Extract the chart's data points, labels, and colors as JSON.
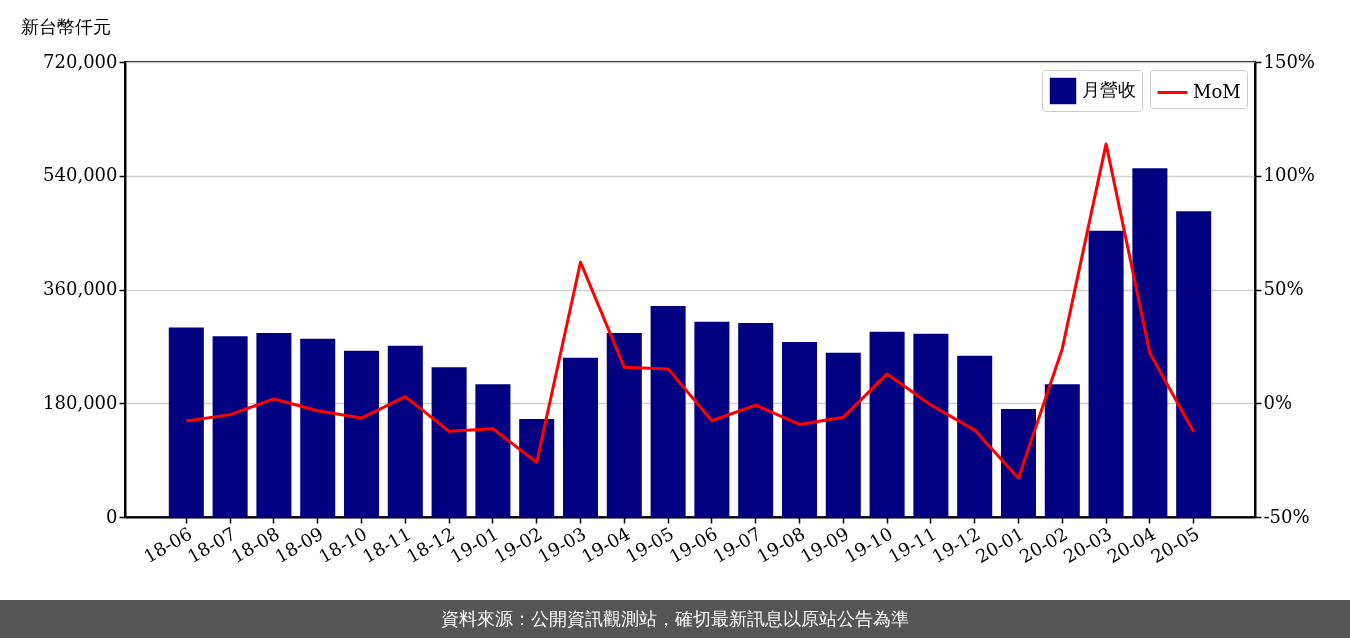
{
  "chart_data": {
    "type": "bar",
    "ylabel": "新台幣仟元",
    "categories": [
      "18-06",
      "18-07",
      "18-08",
      "18-09",
      "18-10",
      "18-11",
      "18-12",
      "19-01",
      "19-02",
      "19-03",
      "19-04",
      "19-05",
      "19-06",
      "19-07",
      "19-08",
      "19-09",
      "19-10",
      "19-11",
      "19-12",
      "20-01",
      "20-02",
      "20-03",
      "20-04",
      "20-05"
    ],
    "series": [
      {
        "name": "月營收",
        "color": "#000080",
        "values": [
          300000,
          286000,
          291000,
          282000,
          263000,
          271000,
          237000,
          210000,
          155000,
          252000,
          291000,
          334000,
          309000,
          307000,
          277000,
          260000,
          293000,
          290000,
          255000,
          171000,
          210000,
          453000,
          552000,
          484000
        ]
      },
      {
        "name": "MoM",
        "type": "line",
        "axis": "y2",
        "color": "#ff0000",
        "values": [
          -7.8,
          -5,
          1.9,
          -3.3,
          -6.5,
          2.9,
          -12.3,
          -11.2,
          -26,
          62,
          15.8,
          15.1,
          -7.7,
          -0.8,
          -9.3,
          -6.2,
          12.9,
          -0.8,
          -11.8,
          -33,
          24,
          114,
          22,
          -12.5
        ]
      }
    ],
    "ylim": [
      0,
      720000
    ],
    "yticks": [
      0,
      {
        "value": 180000,
        "label": "180,000"
      },
      {
        "value": 360000,
        "label": "360,000"
      },
      {
        "value": 540000,
        "label": "540,000"
      },
      {
        "value": 720000,
        "label": "720,000"
      }
    ],
    "y2lim": [
      -50,
      150
    ],
    "y2ticks": [
      {
        "value": -50,
        "label": "-50%"
      },
      {
        "value": 0,
        "label": "0%"
      },
      {
        "value": 50,
        "label": "50%"
      },
      {
        "value": 100,
        "label": "100%"
      },
      {
        "value": 150,
        "label": "150%"
      }
    ],
    "grid": "y",
    "legend": "top right",
    "annotations": [
      "資料來源：公開資訊觀測站，確切最新訊息以原站公告為準"
    ]
  }
}
